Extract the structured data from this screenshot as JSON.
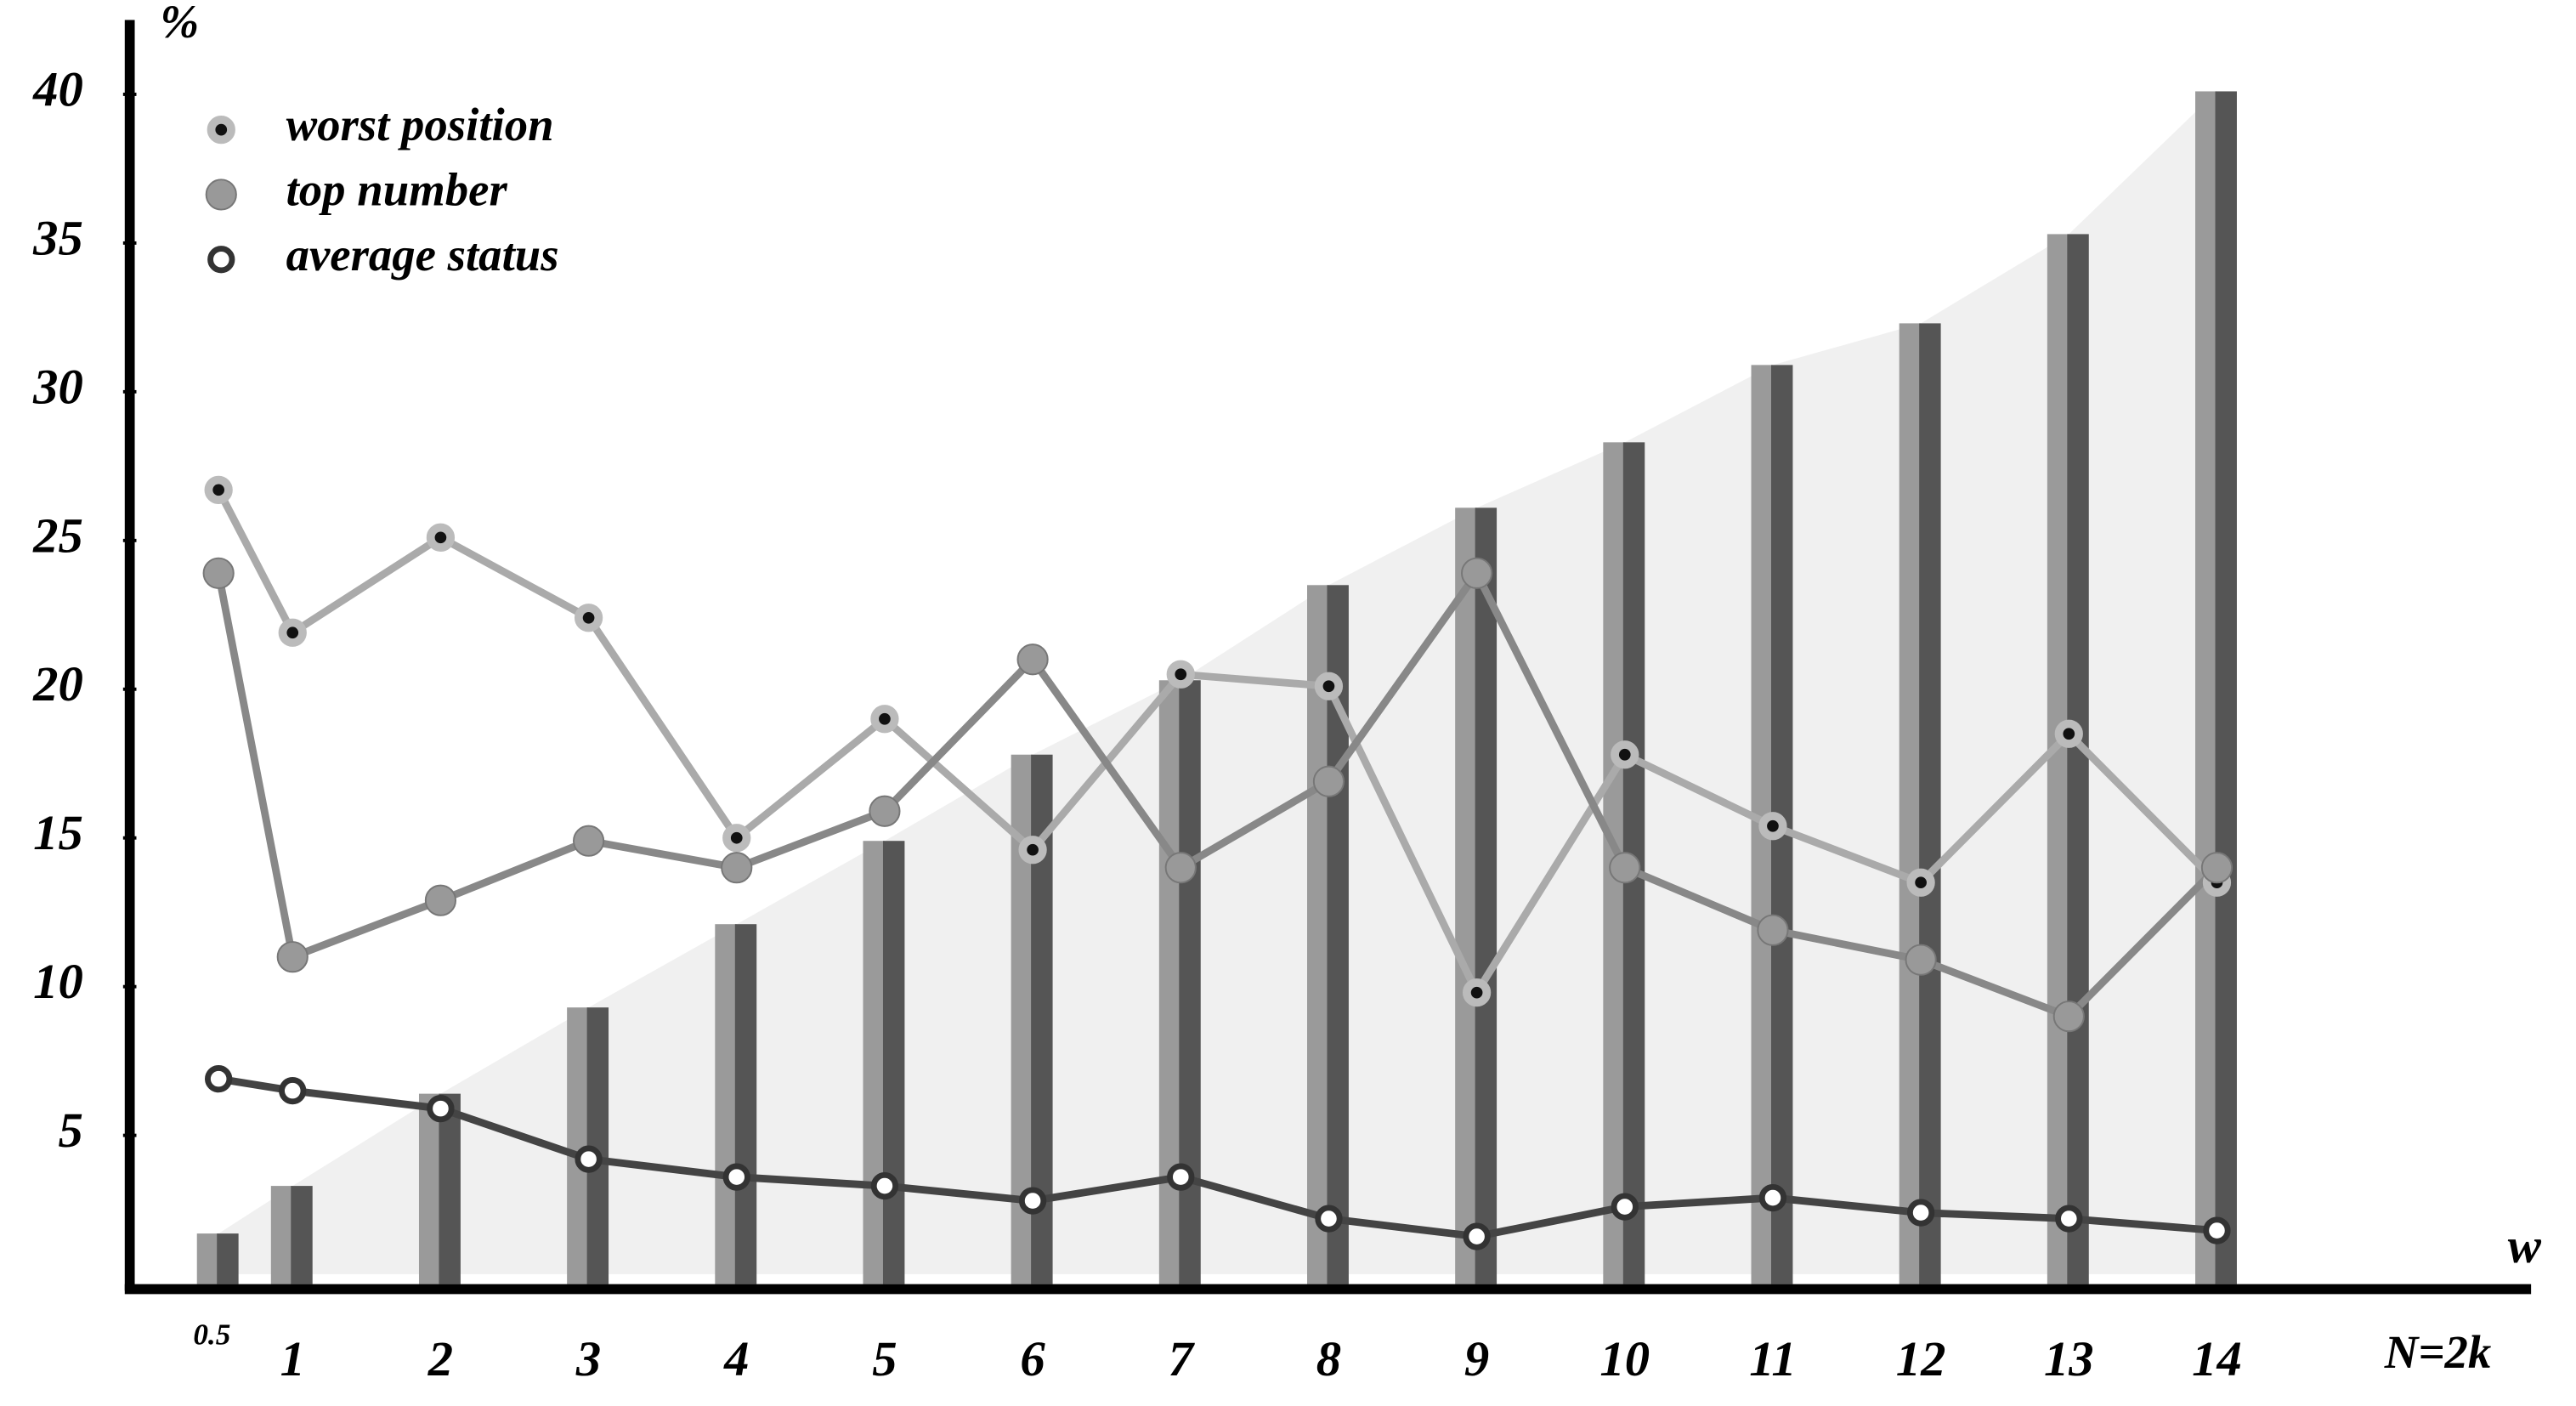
{
  "chart_data": {
    "type": "combo",
    "y_label": "%",
    "x_label": "w",
    "x_note": "N=2k",
    "x": [
      0.5,
      1,
      2,
      3,
      4,
      5,
      6,
      7,
      8,
      9,
      10,
      11,
      12,
      13,
      14
    ],
    "xlim": [
      -0.1,
      16.1
    ],
    "ylim": [
      0,
      42.5
    ],
    "xticks": [
      0.5,
      1,
      2,
      3,
      4,
      5,
      6,
      7,
      8,
      9,
      10,
      11,
      12,
      13,
      14
    ],
    "yticks": [
      5,
      10,
      15,
      20,
      25,
      30,
      35,
      40
    ],
    "bars": {
      "color": "#9a9a9a",
      "shade": "#555555",
      "area_color": "#f0f0f0",
      "values": [
        1.7,
        3.3,
        6.4,
        9.3,
        12.1,
        14.9,
        17.8,
        20.3,
        23.5,
        26.1,
        28.3,
        30.9,
        32.3,
        35.3,
        40.1
      ]
    },
    "series": [
      {
        "name": "worst position",
        "color": "#aaaaaa",
        "marker": "dot",
        "values": [
          26.7,
          21.9,
          25.1,
          22.4,
          15.0,
          19.0,
          14.6,
          20.5,
          20.1,
          9.8,
          17.8,
          15.4,
          13.5,
          18.5,
          13.5
        ]
      },
      {
        "name": "top number",
        "color": "#888888",
        "marker": "filled",
        "values": [
          23.9,
          11.0,
          12.9,
          14.9,
          14.0,
          15.9,
          21.0,
          14.0,
          16.9,
          23.9,
          14.0,
          11.9,
          10.9,
          9.0,
          14.0
        ]
      },
      {
        "name": "average status",
        "color": "#444444",
        "marker": "open",
        "values": [
          6.9,
          6.5,
          5.9,
          4.2,
          3.6,
          3.3,
          2.8,
          3.6,
          2.2,
          1.6,
          2.6,
          2.9,
          2.4,
          2.2,
          1.8
        ]
      }
    ]
  }
}
